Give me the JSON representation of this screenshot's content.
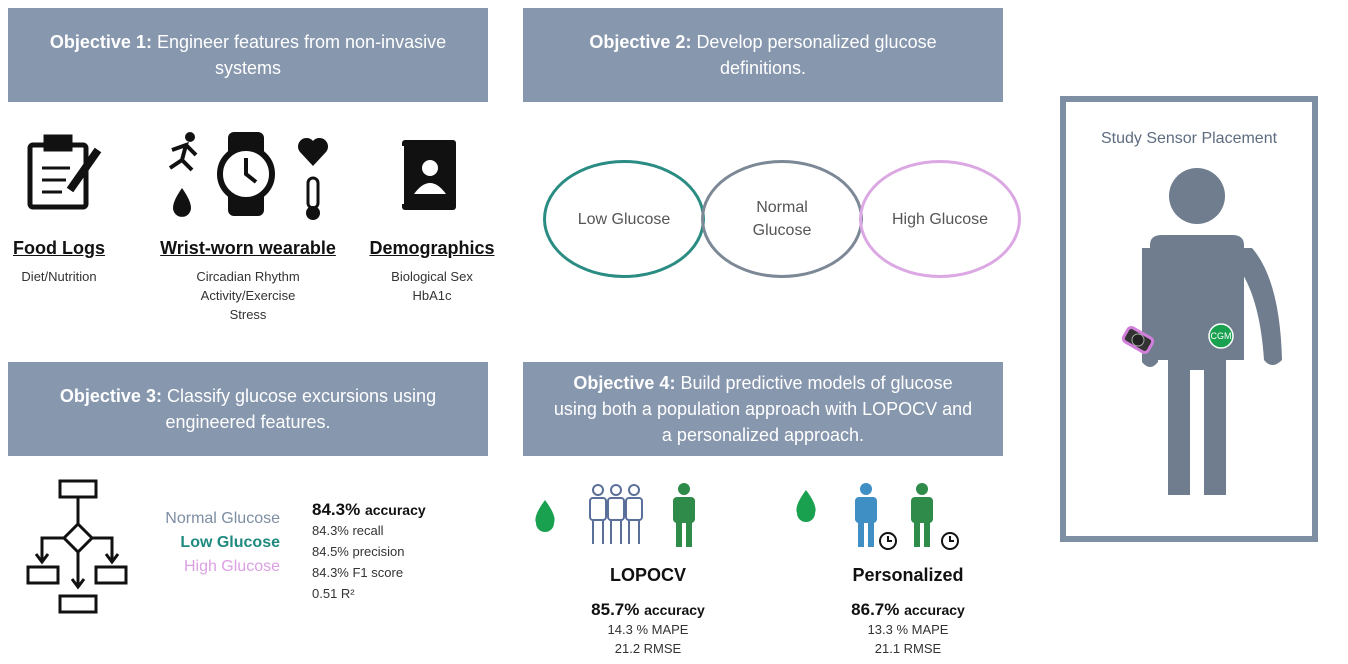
{
  "objectives": [
    {
      "label": "Objective 1:",
      "text": "Engineer features from non-invasive systems"
    },
    {
      "label": "Objective 2:",
      "text": "Develop personalized glucose definitions."
    },
    {
      "label": "Objective 3:",
      "text": "Classify glucose excursions using engineered features."
    },
    {
      "label": "Objective 4:",
      "text": "Build predictive models of glucose using both a population approach with LOPOCV and a personalized approach."
    }
  ],
  "sources": [
    {
      "title": "Food Logs",
      "items": [
        "Diet/Nutrition"
      ]
    },
    {
      "title": "Wrist-worn wearable",
      "items": [
        "Circadian Rhythm",
        "Activity/Exercise",
        "Stress"
      ]
    },
    {
      "title": "Demographics",
      "items": [
        "Biological Sex",
        "HbA1c"
      ]
    }
  ],
  "glucose_definitions": [
    "Low Glucose",
    "Normal Glucose",
    "High Glucose"
  ],
  "classification": {
    "classes": [
      "Normal Glucose",
      "Low Glucose",
      "High Glucose"
    ],
    "accuracy": "84.3%",
    "accuracy_label": "accuracy",
    "metrics": [
      "84.3% recall",
      "84.5% precision",
      "84.3% F1 score",
      "0.51 R²"
    ]
  },
  "models": [
    {
      "name": "LOPOCV",
      "accuracy": "85.7%",
      "accuracy_label": "accuracy",
      "metrics": [
        "14.3 % MAPE",
        "21.2 RMSE"
      ]
    },
    {
      "name": "Personalized",
      "accuracy": "86.7%",
      "accuracy_label": "accuracy",
      "metrics": [
        "13.3 % MAPE",
        "21.1 RMSE"
      ]
    }
  ],
  "sensor_placement": {
    "title": "Study Sensor Placement",
    "cgm_label": "CGM"
  }
}
